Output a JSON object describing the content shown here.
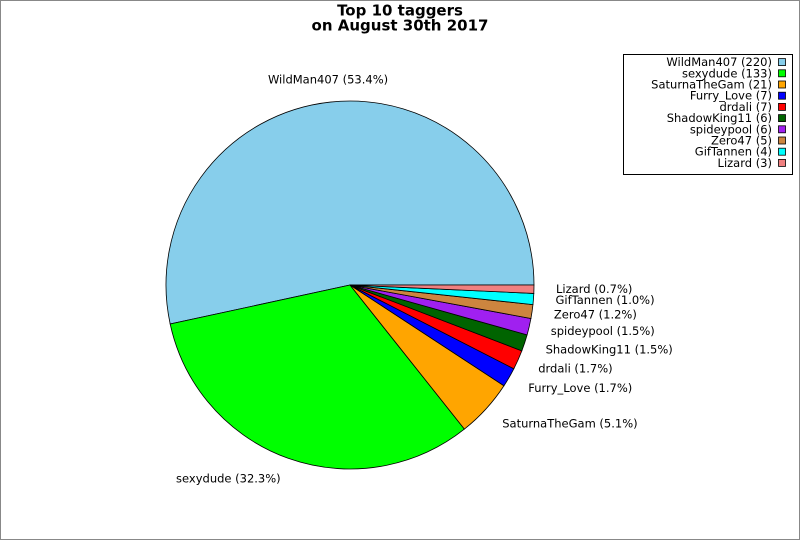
{
  "chart_data": {
    "type": "pie",
    "title": "Top 10 taggers",
    "subtitle": "on August 30th 2017",
    "categories": [
      "WildMan407",
      "sexydude",
      "SaturnaTheGam",
      "Furry_Love",
      "drdali",
      "ShadowKing11",
      "spideypool",
      "Zero47",
      "GifTannen",
      "Lizard"
    ],
    "values": [
      220,
      133,
      21,
      7,
      7,
      6,
      6,
      5,
      4,
      3
    ],
    "value_labels": [
      "WildMan407 (53.4%)",
      "sexydude (32.3%)",
      "SaturnaTheGam (5.1%)",
      "Furry_Love (1.7%)",
      "drdali (1.7%)",
      "ShadowKing11 (1.5%)",
      "spideypool (1.5%)",
      "Zero47 (1.2%)",
      "GifTannen (1.0%)",
      "Lizard (0.7%)"
    ],
    "legend_labels": [
      "WildMan407 (220)",
      "sexydude (133)",
      "SaturnaTheGam (21)",
      "Furry_Love (7)",
      "drdali (7)",
      "ShadowKing11 (6)",
      "spideypool (6)",
      "Zero47 (5)",
      "GifTannen (4)",
      "Lizard (3)"
    ],
    "colors": [
      "#87ceeb",
      "#00ff00",
      "#ffa500",
      "#0000ff",
      "#ff0000",
      "#006400",
      "#a020f0",
      "#cd853f",
      "#00ffff",
      "#f08080"
    ],
    "legend_position": "upper right"
  }
}
